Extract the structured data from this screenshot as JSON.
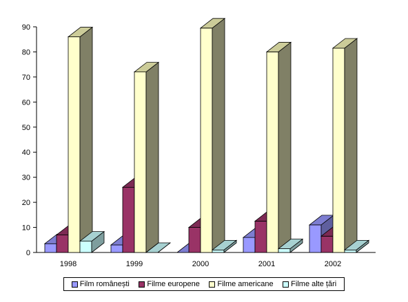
{
  "chart_data": {
    "type": "bar",
    "style": "3d-clustered-column",
    "categories": [
      "1998",
      "1999",
      "2000",
      "2001",
      "2002"
    ],
    "series": [
      {
        "name": "Film românești",
        "color": "#9999ff",
        "values": [
          3.5,
          3,
          0,
          6,
          11
        ]
      },
      {
        "name": "Filme europene",
        "color": "#993366",
        "values": [
          7,
          26,
          10,
          12.5,
          6.5
        ]
      },
      {
        "name": "Filme americane",
        "color": "#ffffcc",
        "values": [
          86,
          72,
          89.5,
          80,
          81.5
        ]
      },
      {
        "name": "Filme alte țări",
        "color": "#ccffff",
        "values": [
          4.5,
          0,
          1,
          1.5,
          1
        ]
      }
    ],
    "ylim": [
      0,
      90
    ],
    "yticks": [
      "0",
      "10",
      "20",
      "30",
      "40",
      "50",
      "60",
      "70",
      "80",
      "90"
    ],
    "legend_position": "bottom",
    "grid": false
  }
}
